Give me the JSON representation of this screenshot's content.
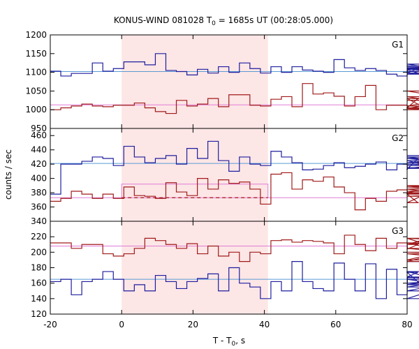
{
  "chart_data": {
    "type": "line",
    "title_main": "KONUS-WIND 081028 T",
    "title_sub": "0",
    "title_rest": " = 1685s UT (00:28:05.000)",
    "xlabel_main": "T - T",
    "xlabel_sub": "0",
    "xlabel_rest": ", s",
    "ylabel": "counts / sec",
    "xlim": [
      -20,
      80
    ],
    "x_ticks": [
      "-20",
      "0",
      "20",
      "40",
      "60",
      "80"
    ],
    "shaded_interval": [
      0,
      41
    ],
    "panels": [
      {
        "name": "G1",
        "ylim": [
          950,
          1200
        ],
        "y_ticks": [
          "950",
          "1000",
          "1050",
          "1100",
          "1150",
          "1200"
        ],
        "lines": [
          {
            "color": "#5a9bd5",
            "y": 1102
          },
          {
            "color": "#e07bd6",
            "y": 1013
          }
        ],
        "series": [
          {
            "color": "#1e1e9e",
            "x_start": -20,
            "step": 2.944,
            "values": [
              1103,
              1090,
              1097,
              1097,
              1125,
              1103,
              1110,
              1128,
              1128,
              1120,
              1150,
              1105,
              1102,
              1093,
              1108,
              1098,
              1115,
              1100,
              1125,
              1110,
              1098,
              1115,
              1100,
              1115,
              1106,
              1103,
              1100,
              1134,
              1112,
              1105,
              1110,
              1105,
              1095,
              1090,
              1107,
              1098,
              1122,
              1110,
              1095,
              1108,
              1102,
              1108,
              1115,
              1110,
              1112,
              1118
            ]
          },
          {
            "color": "#a01a1a",
            "x_start": -20,
            "step": 2.944,
            "values": [
              1000,
              1005,
              1010,
              1015,
              1010,
              1008,
              1012,
              1012,
              1018,
              1005,
              995,
              990,
              1025,
              1010,
              1015,
              1030,
              1008,
              1040,
              1040,
              1012,
              1010,
              1028,
              1035,
              1008,
              1070,
              1042,
              1045,
              1036,
              1010,
              1035,
              1065,
              1000,
              1012,
              1012,
              1005,
              1030,
              1000,
              1003,
              1025,
              1030,
              1035,
              1005,
              1010,
              1050,
              1005,
              1005
            ]
          }
        ]
      },
      {
        "name": "G2",
        "ylim": [
          340,
          470
        ],
        "y_ticks": [
          "340",
          "360",
          "380",
          "400",
          "420",
          "440",
          "460"
        ],
        "lines": [
          {
            "color": "#5a9bd5",
            "y": 421
          },
          {
            "color": "#e07bd6",
            "y": 373
          }
        ],
        "series": [
          {
            "color": "#1e1e9e",
            "x_start": -20,
            "step": 2.944,
            "values": [
              378,
              420,
              420,
              424,
              430,
              428,
              418,
              445,
              430,
              422,
              428,
              432,
              420,
              442,
              428,
              452,
              425,
              410,
              430,
              420,
              418,
              438,
              430,
              422,
              412,
              413,
              418,
              422,
              415,
              417,
              420,
              423,
              412,
              420,
              413,
              428,
              425,
              415,
              414,
              422,
              430,
              418,
              420,
              418,
              422,
              432
            ]
          },
          {
            "color": "#a01a1a",
            "x_start": -20,
            "step": 2.944,
            "values": [
              368,
              372,
              382,
              378,
              372,
              378,
              372,
              388,
              376,
              375,
              372,
              394,
              381,
              376,
              400,
              385,
              398,
              393,
              395,
              385,
              364,
              406,
              408,
              385,
              398,
              396,
              402,
              388,
              380,
              356,
              372,
              368,
              382,
              384,
              378,
              366,
              380,
              388,
              385,
              375,
              379,
              382,
              385,
              390,
              378,
              390
            ]
          }
        ],
        "bracket": {
          "color": "#e07bd6",
          "x": [
            0,
            41
          ],
          "y": 392
        },
        "dashed": {
          "color": "#a01a1a",
          "x": [
            0,
            41
          ],
          "y": 373
        }
      },
      {
        "name": "G3",
        "ylim": [
          120,
          240
        ],
        "y_ticks": [
          "120",
          "140",
          "160",
          "180",
          "200",
          "220"
        ],
        "lines": [
          {
            "color": "#5a9bd5",
            "y": 165
          },
          {
            "color": "#e07bd6",
            "y": 208
          }
        ],
        "series": [
          {
            "color": "#1e1e9e",
            "x_start": -20,
            "step": 2.944,
            "values": [
              162,
              165,
              145,
              162,
              165,
              175,
              165,
              150,
              158,
              150,
              170,
              162,
              153,
              162,
              166,
              172,
              150,
              180,
              160,
              155,
              140,
              162,
              150,
              188,
              162,
              153,
              150,
              186,
              165,
              150,
              185,
              140,
              178,
              145,
              168,
              174,
              150,
              158,
              165,
              155,
              168,
              160,
              167,
              175,
              140,
              188
            ]
          },
          {
            "color": "#a01a1a",
            "x_start": -20,
            "step": 2.944,
            "values": [
              212,
              212,
              205,
              210,
              210,
              198,
              195,
              198,
              205,
              218,
              215,
              210,
              205,
              211,
              198,
              208,
              195,
              200,
              188,
              200,
              198,
              215,
              216,
              213,
              215,
              214,
              212,
              198,
              222,
              210,
              202,
              218,
              205,
              212,
              204,
              210,
              218,
              205,
              200,
              198,
              190,
              212,
              188,
              218,
              212,
              200
            ]
          }
        ]
      }
    ]
  }
}
